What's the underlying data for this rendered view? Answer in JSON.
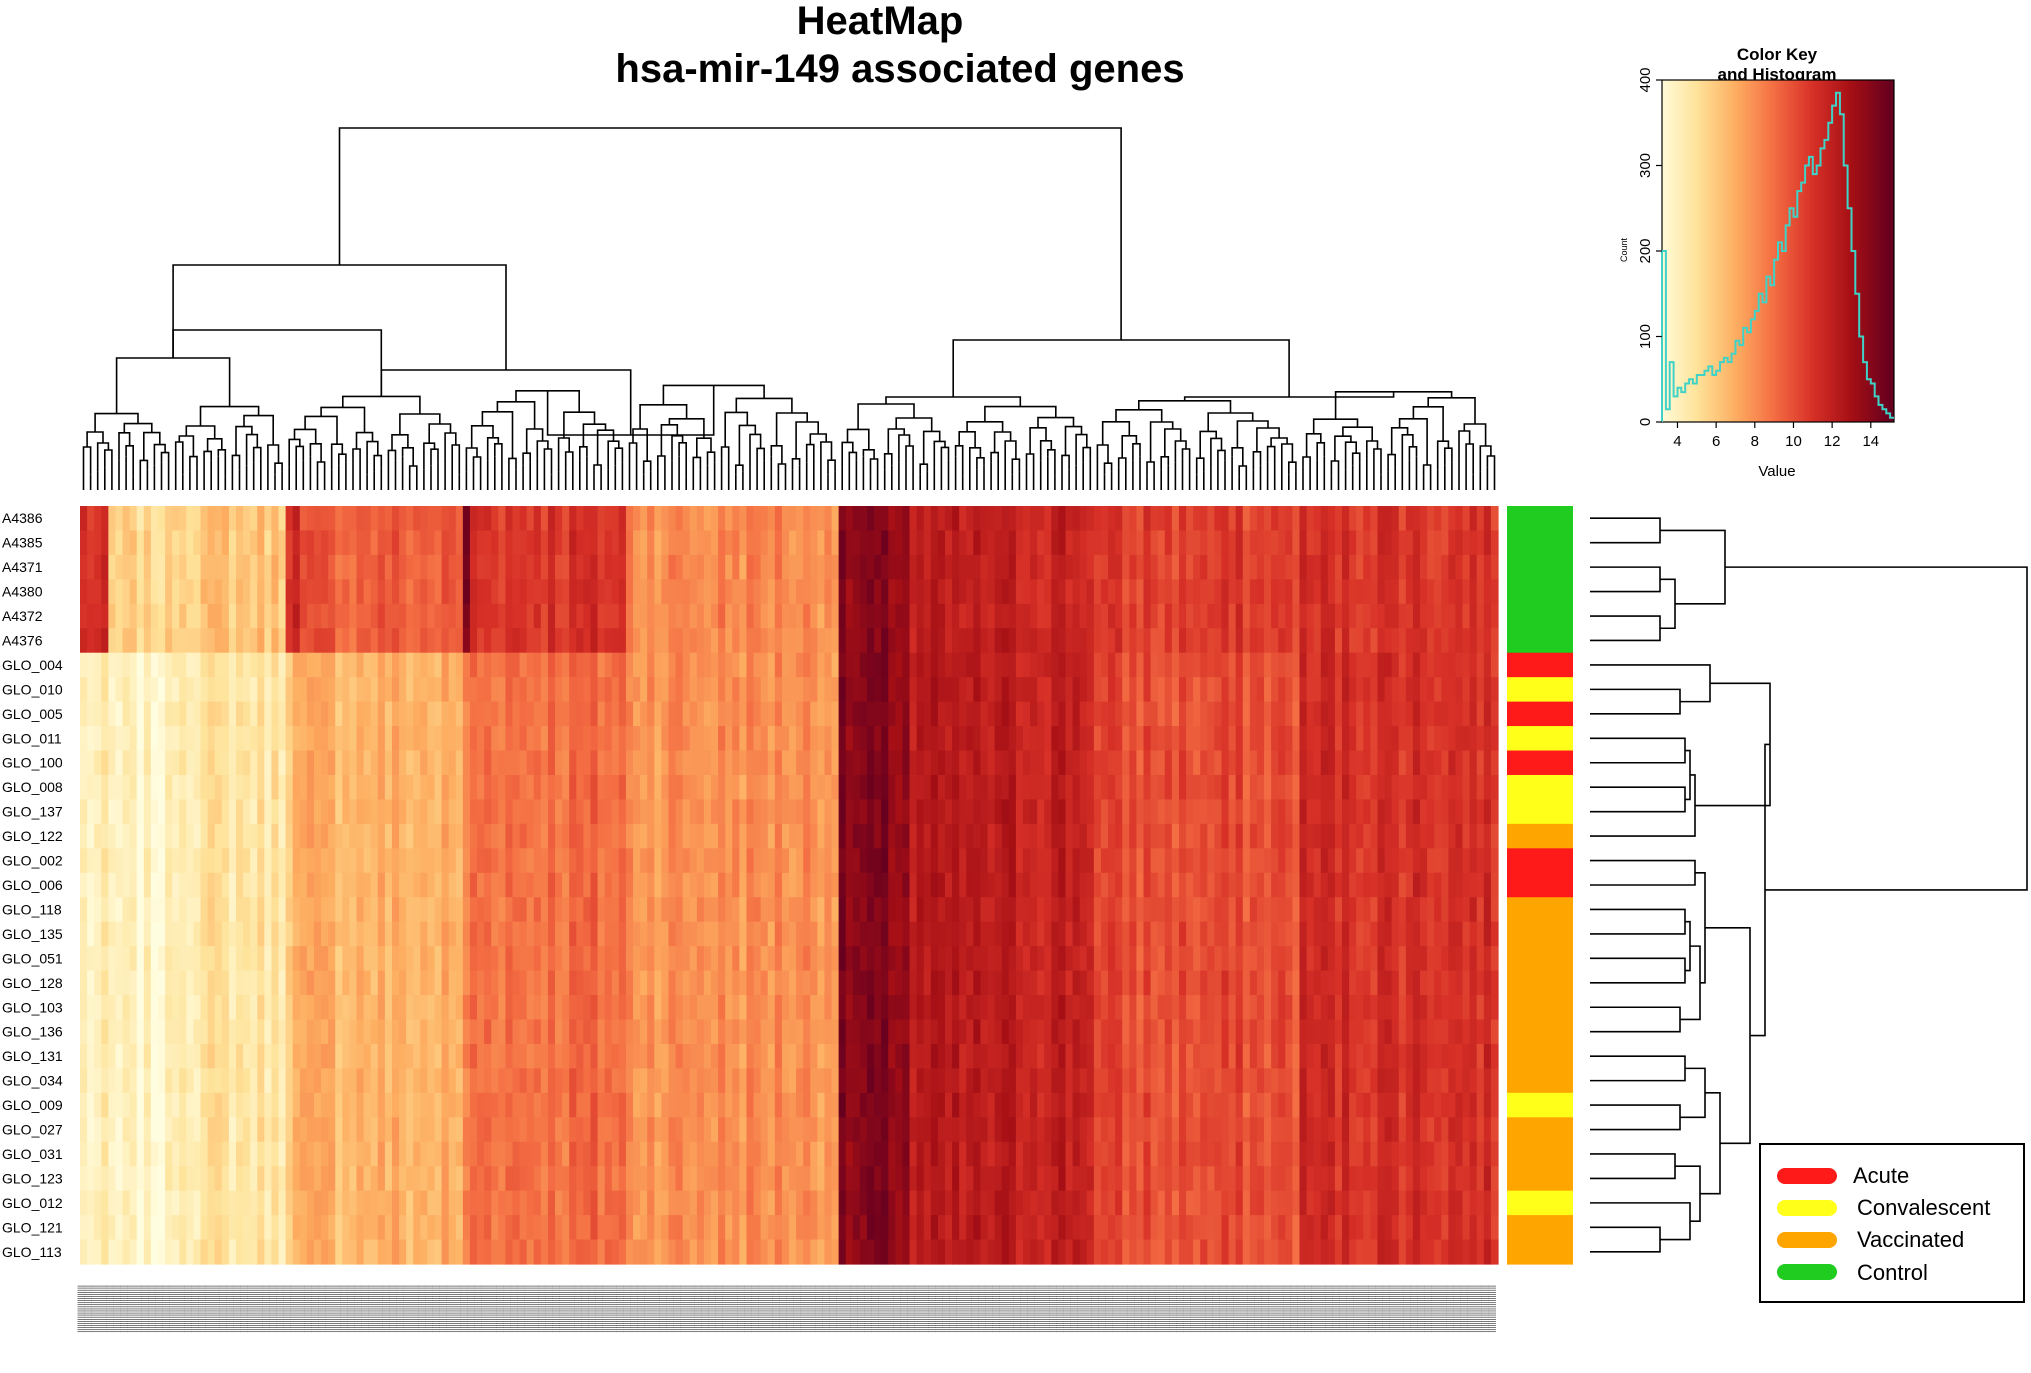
{
  "chart_data": {
    "type": "heatmap",
    "title_lines": [
      "HeatMap",
      "hsa-mir-149 associated genes"
    ],
    "rows": [
      "A4386",
      "A4385",
      "A4371",
      "A4380",
      "A4372",
      "A4376",
      "GLO_004",
      "GLO_010",
      "GLO_005",
      "GLO_011",
      "GLO_100",
      "GLO_008",
      "GLO_137",
      "GLO_122",
      "GLO_002",
      "GLO_006",
      "GLO_118",
      "GLO_135",
      "GLO_051",
      "GLO_128",
      "GLO_103",
      "GLO_136",
      "GLO_131",
      "GLO_034",
      "GLO_009",
      "GLO_027",
      "GLO_031",
      "GLO_123",
      "GLO_012",
      "GLO_121",
      "GLO_113"
    ],
    "row_groups": [
      "Control",
      "Control",
      "Control",
      "Control",
      "Control",
      "Control",
      "Acute",
      "Convalescent",
      "Acute",
      "Convalescent",
      "Acute",
      "Convalescent",
      "Convalescent",
      "Vaccinated",
      "Acute",
      "Acute",
      "Vaccinated",
      "Vaccinated",
      "Vaccinated",
      "Vaccinated",
      "Vaccinated",
      "Vaccinated",
      "Vaccinated",
      "Vaccinated",
      "Convalescent",
      "Vaccinated",
      "Vaccinated",
      "Vaccinated",
      "Convalescent",
      "Vaccinated",
      "Vaccinated"
    ],
    "column_count": 200,
    "value_range": [
      3,
      15
    ],
    "column_profile": [
      {
        "from": 0,
        "to": 4,
        "control": 11.0,
        "other": 4.0
      },
      {
        "from": 4,
        "to": 13,
        "control": 5.5,
        "other": 3.6
      },
      {
        "from": 13,
        "to": 29,
        "control": 6.2,
        "other": 4.8
      },
      {
        "from": 29,
        "to": 31,
        "control": 11.5,
        "other": 6.6
      },
      {
        "from": 31,
        "to": 54,
        "control": 9.5,
        "other": 6.8
      },
      {
        "from": 54,
        "to": 55,
        "control": 14.0,
        "other": 8.0
      },
      {
        "from": 55,
        "to": 77,
        "control": 11.0,
        "other": 9.0
      },
      {
        "from": 77,
        "to": 107,
        "control": 8.2,
        "other": 8.0
      },
      {
        "from": 107,
        "to": 117,
        "control": 13.6,
        "other": 13.8
      },
      {
        "from": 117,
        "to": 143,
        "control": 11.8,
        "other": 12.0
      },
      {
        "from": 143,
        "to": 172,
        "control": 10.5,
        "other": 10.0
      },
      {
        "from": 172,
        "to": 200,
        "control": 11.0,
        "other": 11.2
      }
    ],
    "color_key": {
      "title_lines": [
        "Color Key",
        "and Histogram"
      ],
      "xlabel": "Value",
      "ylabel": "Count",
      "xlim": [
        3.2,
        15.2
      ],
      "ylim": [
        0,
        400
      ],
      "xticks": [
        4,
        6,
        8,
        10,
        12,
        14
      ],
      "yticks": [
        0,
        100,
        200,
        300,
        400
      ],
      "colors": [
        "#fffde0",
        "#fee39a",
        "#fdae61",
        "#f46d43",
        "#d73027",
        "#a50f15",
        "#67001f"
      ],
      "histogram": {
        "bin_start": 3.2,
        "bin_width": 0.2,
        "counts": [
          200,
          15,
          70,
          30,
          40,
          35,
          45,
          50,
          45,
          55,
          55,
          60,
          65,
          55,
          60,
          70,
          75,
          70,
          80,
          95,
          90,
          110,
          105,
          120,
          130,
          150,
          140,
          170,
          160,
          190,
          210,
          200,
          230,
          250,
          240,
          270,
          280,
          300,
          310,
          290,
          300,
          320,
          330,
          350,
          370,
          385,
          360,
          300,
          250,
          200,
          150,
          100,
          70,
          50,
          45,
          30,
          20,
          15,
          10,
          5
        ]
      }
    }
  },
  "legend": [
    {
      "label": "Acute",
      "color": "#ff1a1a"
    },
    {
      "label": "Convalescent",
      "color": "#ffff1a"
    },
    {
      "label": "Vaccinated",
      "color": "#ffa500"
    },
    {
      "label": "Control",
      "color": "#1fcc1f"
    }
  ]
}
